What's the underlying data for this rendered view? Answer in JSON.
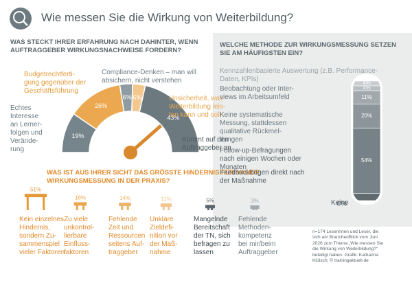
{
  "title": "Wie messen Sie die Wirkung von Weiterbildung?",
  "note": "n=174 Leserinnen und Leser, die\nsich am BranchenBlick vom Juni\n2026 zum Thema „Wie messen Sie\ndie Wirkung von Weiterbildung?“\nbeteiligt haben. Grafik: Katharina\nKlütsch; © trainingaktuell.de",
  "chart_data": [
    {
      "type": "gauge",
      "title": "WAS STECKT IHRER ERFAHRUNG NACH DAHINTER, WENN\nAUFTRAGGEBER WIRKUNGSNACHWEISE FORDERN?",
      "categories": [
        "Echtes\nInteresse\nan Lerner-\nfolgen und\nVerände-\nrung",
        "Budgetrechtferti-\ngung gegenüber der\nGeschäftsführung",
        "Compliance-Denken – man will\nabsichern, nicht verstehen",
        "Unsicherheit, was\nWeiterbildung leis-\nten kann und soll",
        "Kommt auf den\nAuftraggeber an"
      ],
      "values": [
        19,
        26,
        6,
        6,
        43
      ],
      "value_labels": [
        "19%",
        "26%",
        "6%",
        "6%",
        "43%"
      ],
      "colors": [
        "#76858b",
        "#eba850",
        "#8f9ca1",
        "#f3c88e",
        "#6c7a80"
      ],
      "label_colors": [
        "#6c7a80",
        "#e59a3a",
        "#6c7a80",
        "#eba850",
        "#4f5b60"
      ]
    },
    {
      "type": "hurdles",
      "title": "WAS IST AUS IHRER SICHT DAS GRÖSSTE HINDERNIS FÜR VALIDE\nWIRKUNGSMESSUNG IN DER PRAXIS?",
      "categories": [
        "Kein einzelnes\nHindernis,\nsondern Zu-\nsammenspiel\nvieler Faktoren",
        "Zu viele\nunkontrol-\nlierbare\nEinfluss-\nfaktoren",
        "Fehlende\nZeit und\nRessourcen\nseitens Auf-\ntraggeber",
        "Unklare\nZieldefi-\nnition vor\nder Maß-\nnahme",
        "Mangelnde\nBereitschaft\nder TN, sich\nbefragen zu\nlassen",
        "Fehlende\nMethoden-\nkompetenz\nbei mir/beim\nAuftraggeber"
      ],
      "values": [
        51,
        16,
        14,
        11,
        5,
        3
      ],
      "value_labels": [
        "51%",
        "16%",
        "14%",
        "11%",
        "5%",
        "3%"
      ],
      "colors": [
        "#e59a3a",
        "#eaa64f",
        "#eeb468",
        "#f2c690",
        "#5c686d",
        "#a3abaf"
      ],
      "label_colors": [
        "#e08a2b",
        "#e08a2b",
        "#e08a2b",
        "#e08a2b",
        "#3f4a4f",
        "#6c7a80"
      ]
    },
    {
      "type": "thermometer",
      "title": "WELCHE METHODE ZUR WIRKUNGSMESSUNG SETZEN\nSIE AM HÄUFIGSTEN EIN?",
      "categories": [
        "Kennzahlenbasierte Auswertung (z.B. Performance-\nDaten, KPIs)",
        "Beobachtung oder Inter-\nviews im Arbeitsumfeld",
        "Keine systematische\nMessung, stattdessen\nqualitative Rückmel-\ndungen",
        "Follow-up-Befragungen\nnach einigen Wochen oder\nMonaten",
        "Feedbackbögen direkt nach\nder Maßnahme",
        "Keine"
      ],
      "values": [
        4,
        4,
        11,
        20,
        54,
        6
      ],
      "value_labels": [
        "4%",
        "4%",
        "11%",
        "20%",
        "54%",
        "6%"
      ],
      "colors": [
        "#c9cdcf",
        "#b7bdc0",
        "#a2a9ad",
        "#8c969a",
        "#768287",
        "#5f6b70"
      ],
      "label_colors": [
        "#9aa3a7",
        "#6c7a80",
        "#6c7a80",
        "#5b676c",
        "#4f5b60",
        "#4f5b60"
      ]
    }
  ]
}
